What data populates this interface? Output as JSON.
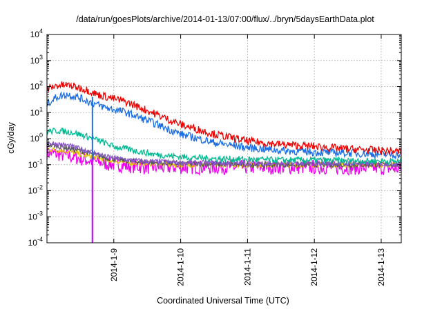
{
  "chart_data": {
    "type": "line",
    "title": "/data/run/goesPlots/archive/2014-01-13/07:00/flux/../bryn/5daysEarthData.plot",
    "xlabel": "Coordinated Universal Time (UTC)",
    "ylabel": "cGy/day",
    "yscale": "log",
    "ylim": [
      0.0001,
      10000
    ],
    "xlim": [
      0,
      5.3
    ],
    "grid": true,
    "y_ticks": [
      {
        "value": 0.0001,
        "base": "10",
        "exp": "-4"
      },
      {
        "value": 0.001,
        "base": "10",
        "exp": "-3"
      },
      {
        "value": 0.01,
        "base": "10",
        "exp": "-2"
      },
      {
        "value": 0.1,
        "base": "10",
        "exp": "-1"
      },
      {
        "value": 1,
        "base": "10",
        "exp": "0"
      },
      {
        "value": 10,
        "base": "10",
        "exp": "1"
      },
      {
        "value": 100,
        "base": "10",
        "exp": "2"
      },
      {
        "value": 1000,
        "base": "10",
        "exp": "3"
      },
      {
        "value": 10000,
        "base": "10",
        "exp": "4"
      }
    ],
    "x_ticks": [
      {
        "value": 1,
        "label": "2014-1-9"
      },
      {
        "value": 2,
        "label": "2014-1-10"
      },
      {
        "value": 3,
        "label": "2014-1-11"
      },
      {
        "value": 4,
        "label": "2014-1-12"
      },
      {
        "value": 5,
        "label": "2014-1-13"
      }
    ],
    "series": [
      {
        "color": "#ee0000",
        "noise": 0.15,
        "x": [
          0,
          0.15,
          0.3,
          0.45,
          0.6,
          0.75,
          0.9,
          1.2,
          1.5,
          2,
          2.5,
          3,
          3.5,
          4,
          4.5,
          5,
          5.3
        ],
        "values": [
          80,
          110,
          115,
          95,
          75,
          50,
          40,
          25,
          12,
          3.5,
          1.5,
          0.8,
          0.6,
          0.5,
          0.4,
          0.35,
          0.32
        ]
      },
      {
        "color": "#1a6ee6",
        "noise": 0.15,
        "x": [
          0,
          0.15,
          0.3,
          0.45,
          0.6,
          0.75,
          0.9,
          1.2,
          1.5,
          2,
          2.5,
          3,
          3.5,
          4,
          4.5,
          5,
          5.3
        ],
        "values": [
          22,
          40,
          50,
          40,
          28,
          20,
          15,
          10,
          5,
          1.5,
          0.7,
          0.45,
          0.35,
          0.3,
          0.28,
          0.25,
          0.24
        ]
      },
      {
        "color": "#00b890",
        "noise": 0.12,
        "x": [
          0,
          0.2,
          0.4,
          0.6,
          0.8,
          1,
          1.3,
          1.6,
          2,
          2.5,
          3,
          3.5,
          4,
          4.5,
          5,
          5.3
        ],
        "values": [
          1.9,
          2,
          1.7,
          1.2,
          0.8,
          0.5,
          0.35,
          0.25,
          0.2,
          0.17,
          0.16,
          0.15,
          0.15,
          0.14,
          0.14,
          0.13
        ]
      },
      {
        "color": "#8855cc",
        "noise": 0.1,
        "x": [
          0,
          0.3,
          0.6,
          0.9,
          1.2,
          1.6,
          2,
          3,
          4,
          5,
          5.3
        ],
        "values": [
          0.7,
          0.55,
          0.35,
          0.2,
          0.15,
          0.13,
          0.12,
          0.11,
          0.11,
          0.11,
          0.11
        ]
      },
      {
        "color": "#555555",
        "noise": 0.1,
        "x": [
          0,
          0.3,
          0.6,
          0.9,
          1.2,
          1.6,
          2,
          3,
          4,
          5,
          5.3
        ],
        "values": [
          0.6,
          0.45,
          0.3,
          0.18,
          0.14,
          0.12,
          0.11,
          0.1,
          0.1,
          0.1,
          0.1
        ]
      },
      {
        "color": "#e0c000",
        "noise": 0.1,
        "x": [
          0,
          0.3,
          0.6,
          0.9,
          1.2,
          1.6,
          2,
          3,
          4,
          5,
          5.3
        ],
        "values": [
          0.4,
          0.33,
          0.22,
          0.15,
          0.12,
          0.11,
          0.1,
          0.1,
          0.1,
          0.1,
          0.1
        ]
      },
      {
        "color": "#ee00ee",
        "noise": 0.28,
        "x": [
          0,
          0.3,
          0.6,
          0.9,
          1.2,
          1.6,
          2,
          3,
          4,
          5,
          5.3
        ],
        "values": [
          0.3,
          0.22,
          0.15,
          0.11,
          0.09,
          0.08,
          0.08,
          0.08,
          0.08,
          0.075,
          0.07
        ]
      }
    ],
    "vertical_drops": [
      {
        "color": "#1a6ee6",
        "x": 0.68,
        "from": 40,
        "to": 0.0001
      },
      {
        "color": "#ee00ee",
        "x": 0.68,
        "from": 0.15,
        "to": 0.0001
      }
    ]
  }
}
